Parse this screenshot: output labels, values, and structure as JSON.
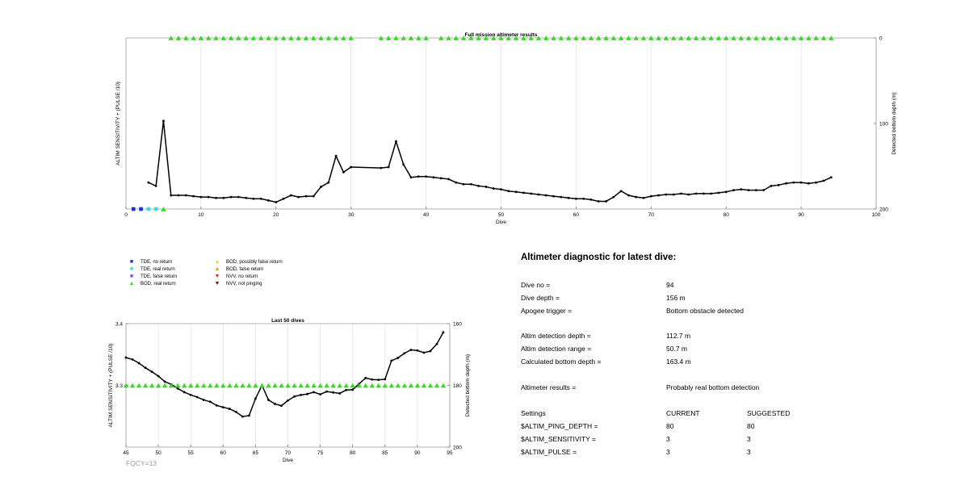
{
  "colors": {
    "bod_real": "#33dd22",
    "tde_no_return": "#1f2fcc",
    "tde_real": "#33dddd",
    "tde_false": "#7755dd",
    "bod_possibly_false": "#eecc22",
    "bod_false": "#ee9900",
    "nvv_no_return": "#dd3311",
    "nvv_not_pinging": "#771100",
    "line": "#000000",
    "left_axis_label": "#2233bb",
    "fqcy_text": "#999999"
  },
  "chart_data": [
    {
      "type": "line",
      "title": "Full mission altimeter results",
      "xlabel": "Dive",
      "ylabel_left": "ALTIM SENSITIVITY + (PULSE /10)",
      "ylabel_right": "Detected bottom depth (m)",
      "xlim": [
        0,
        100
      ],
      "x_ticks": [
        0,
        10,
        20,
        30,
        40,
        50,
        60,
        70,
        80,
        90,
        100
      ],
      "x_tick_labels": [
        "0",
        "10",
        "20",
        "30",
        "40",
        "50",
        "60",
        "70",
        "80",
        "90",
        "100"
      ],
      "y_right_lim": [
        0,
        200
      ],
      "y_right_reversed": true,
      "y_right_ticks": [
        0,
        100,
        200
      ],
      "y_right_tick_labels": [
        "0",
        "100",
        "200"
      ],
      "grid_vertical": true,
      "series": [
        {
          "kind": "line",
          "x": [
            3,
            4,
            5,
            6,
            7,
            8,
            9,
            10,
            11,
            12,
            13,
            14,
            15,
            16,
            17,
            18,
            19,
            20,
            21,
            22,
            23,
            24,
            25,
            26,
            27,
            28,
            29,
            30,
            34,
            35,
            36,
            37,
            38,
            39,
            40,
            41,
            42,
            43,
            44,
            45,
            46,
            47,
            48,
            49,
            50,
            51,
            52,
            53,
            54,
            55,
            56,
            57,
            58,
            59,
            60,
            61,
            62,
            63,
            64,
            65,
            66,
            67,
            68,
            69,
            70,
            71,
            72,
            73,
            74,
            75,
            76,
            77,
            78,
            79,
            80,
            81,
            82,
            83,
            84,
            85,
            86,
            87,
            88,
            89,
            90,
            91,
            92,
            93,
            94
          ],
          "y": [
            169,
            173,
            97,
            184,
            184,
            184,
            185,
            186,
            186,
            187,
            187,
            186,
            186,
            187,
            188,
            188,
            190,
            192,
            188,
            184,
            186,
            185,
            185,
            174,
            169,
            138,
            157,
            151,
            152,
            151,
            121,
            148,
            163,
            162,
            162,
            163,
            164,
            165,
            169,
            171,
            171,
            173,
            174,
            176,
            177,
            179,
            180,
            181,
            182,
            183,
            184,
            185,
            186,
            187,
            188,
            188,
            189,
            191,
            191,
            186,
            179,
            184,
            186,
            187,
            185,
            184,
            183,
            183,
            182,
            183,
            182,
            182,
            182,
            181,
            180,
            178,
            177,
            178,
            178,
            178,
            173,
            172,
            170,
            169,
            169,
            170,
            169,
            167,
            163
          ]
        },
        {
          "kind": "markers",
          "legend_key": "tde_no_return",
          "shape": "square",
          "x": [
            1,
            2
          ],
          "y": [
            200,
            200
          ]
        },
        {
          "kind": "markers",
          "legend_key": "tde_real",
          "shape": "square",
          "x": [
            3,
            4
          ],
          "y": [
            200,
            200
          ]
        },
        {
          "kind": "markers",
          "legend_key": "bod_real",
          "shape": "triangle-up",
          "x": [
            5,
            6,
            7,
            8,
            9,
            10,
            11,
            12,
            13,
            14,
            15,
            16,
            17,
            18,
            19,
            20,
            21,
            22,
            23,
            24,
            25,
            26,
            27,
            28,
            29,
            30,
            34,
            35,
            36,
            37,
            38,
            39,
            40,
            42,
            43,
            44,
            45,
            46,
            47,
            48,
            49,
            50,
            51,
            52,
            53,
            54,
            55,
            56,
            57,
            58,
            59,
            60,
            61,
            62,
            63,
            64,
            65,
            66,
            67,
            68,
            69,
            70,
            71,
            72,
            73,
            74,
            75,
            76,
            77,
            78,
            79,
            80,
            81,
            82,
            83,
            84,
            85,
            86,
            87,
            88,
            89,
            90,
            91,
            92,
            93,
            94
          ],
          "y": [
            200,
            0,
            0,
            0,
            0,
            0,
            0,
            0,
            0,
            0,
            0,
            0,
            0,
            0,
            0,
            0,
            0,
            0,
            0,
            0,
            0,
            0,
            0,
            0,
            0,
            0,
            0,
            0,
            0,
            0,
            0,
            0,
            0,
            0,
            0,
            0,
            0,
            0,
            0,
            0,
            0,
            0,
            0,
            0,
            0,
            0,
            0,
            0,
            0,
            0,
            0,
            0,
            0,
            0,
            0,
            0,
            0,
            0,
            0,
            0,
            0,
            0,
            0,
            0,
            0,
            0,
            0,
            0,
            0,
            0,
            0,
            0,
            0,
            0,
            0,
            0,
            0,
            0,
            0,
            0,
            0,
            0,
            0,
            0,
            0,
            0
          ]
        }
      ]
    },
    {
      "type": "line",
      "title": "Last 50 dives",
      "xlabel": "Dive",
      "ylabel_left": "ALTIM SENSITIVITY + (PULSE /10)",
      "ylabel_right": "Detected bottom depth (m)",
      "xlim": [
        45,
        95
      ],
      "x_ticks": [
        45,
        50,
        55,
        60,
        65,
        70,
        75,
        80,
        85,
        90,
        95
      ],
      "x_tick_labels": [
        "45",
        "50",
        "55",
        "60",
        "65",
        "70",
        "75",
        "80",
        "85",
        "90",
        "95"
      ],
      "y_left_lim": [
        3.2,
        3.4
      ],
      "y_left_ticks": [
        3.3,
        3.4
      ],
      "y_left_tick_labels": [
        "3.3",
        "3.4"
      ],
      "y_right_lim": [
        160,
        200
      ],
      "y_right_reversed": true,
      "y_right_ticks": [
        160,
        180,
        200
      ],
      "y_right_tick_labels": [
        "160",
        "180",
        "200"
      ],
      "grid_vertical": true,
      "series": [
        {
          "kind": "line",
          "x": [
            45,
            46,
            47,
            48,
            49,
            50,
            51,
            52,
            53,
            54,
            55,
            56,
            57,
            58,
            59,
            60,
            61,
            62,
            63,
            64,
            65,
            66,
            67,
            68,
            69,
            70,
            71,
            72,
            73,
            74,
            75,
            76,
            77,
            78,
            79,
            80,
            81,
            82,
            83,
            84,
            85,
            86,
            87,
            88,
            89,
            90,
            91,
            92,
            93,
            94
          ],
          "y": [
            171,
            171.6,
            172.8,
            174.3,
            175.6,
            177,
            178.8,
            179.7,
            181,
            182.2,
            183.1,
            183.8,
            184.7,
            185.3,
            186.5,
            187.1,
            187.6,
            188.6,
            190.1,
            189.8,
            184.3,
            180,
            184.7,
            186,
            186.6,
            184.9,
            183.6,
            183.1,
            182.8,
            182.2,
            182.9,
            182,
            182.3,
            182.6,
            181.5,
            181.4,
            179.5,
            177.6,
            178.1,
            178.2,
            178,
            172,
            171.1,
            169.6,
            168.5,
            168.7,
            169.4,
            168.9,
            166.6,
            162.8
          ]
        },
        {
          "kind": "markers",
          "legend_key": "bod_real",
          "shape": "triangle-up",
          "x": [
            45,
            46,
            47,
            48,
            49,
            50,
            51,
            52,
            53,
            54,
            55,
            56,
            57,
            58,
            59,
            60,
            61,
            62,
            63,
            64,
            65,
            66,
            67,
            68,
            69,
            70,
            71,
            72,
            73,
            74,
            75,
            76,
            77,
            78,
            79,
            80,
            81,
            82,
            83,
            84,
            85,
            86,
            87,
            88,
            89,
            90,
            91,
            92,
            93,
            94
          ],
          "y_left_value": 3.3
        }
      ]
    }
  ],
  "legend": [
    {
      "key": "tde_no_return",
      "symbol": "■",
      "label": "TDE, no return"
    },
    {
      "key": "tde_real",
      "symbol": "■",
      "label": "TDE, real return"
    },
    {
      "key": "tde_false",
      "symbol": "■",
      "label": "TDE, false return"
    },
    {
      "key": "bod_real",
      "symbol": "▲",
      "label": "BOD, real return"
    },
    {
      "key": "bod_possibly_false",
      "symbol": "▲",
      "label": "BOD, possibly false return"
    },
    {
      "key": "bod_false",
      "symbol": "▲",
      "label": "BOD, false return"
    },
    {
      "key": "nvv_no_return",
      "symbol": "▼",
      "label": "NVV, no return"
    },
    {
      "key": "nvv_not_pinging",
      "symbol": "▼",
      "label": "NVV, not pinging"
    }
  ],
  "diagnostic": {
    "title": "Altimeter diagnostic for latest dive:",
    "rows": [
      {
        "label": "Dive no =",
        "value": "94"
      },
      {
        "label": "Dive depth =",
        "value": "156 m"
      },
      {
        "label": "Apogee trigger =",
        "value": "Bottom obstacle detected"
      },
      {
        "label": "Altim detection depth =",
        "value": "112.7 m"
      },
      {
        "label": "Altim detection range =",
        "value": "50.7 m"
      },
      {
        "label": "Calculated bottom depth =",
        "value": "163.4 m"
      },
      {
        "label": "Altimeter results =",
        "value": "Probably real bottom detection"
      }
    ],
    "settings": {
      "header": {
        "name": "Settings",
        "current": "CURRENT",
        "suggested": "SUGGESTED"
      },
      "rows": [
        {
          "name": "$ALTIM_PING_DEPTH =",
          "current": "80",
          "suggested": "80"
        },
        {
          "name": "$ALTIM_SENSITIVITY =",
          "current": "3",
          "suggested": "3"
        },
        {
          "name": "$ALTIM_PULSE =",
          "current": "3",
          "suggested": "3"
        }
      ]
    }
  },
  "fqcy": "FQCY=13"
}
